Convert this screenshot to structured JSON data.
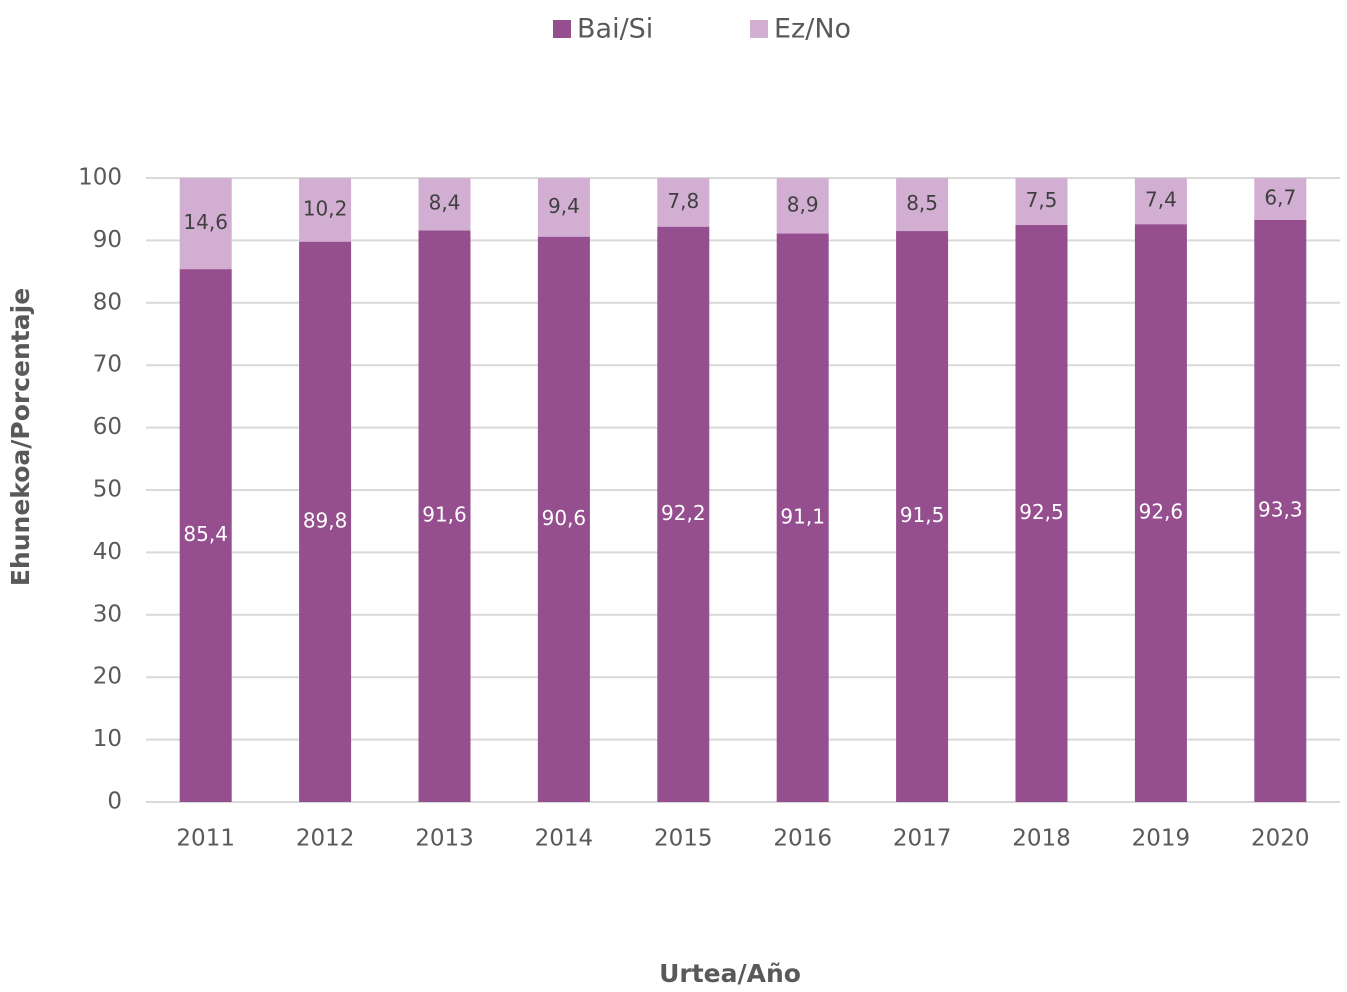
{
  "chart_data": {
    "type": "stacked_bar",
    "categories": [
      "2011",
      "2012",
      "2013",
      "2014",
      "2015",
      "2016",
      "2017",
      "2018",
      "2019",
      "2020"
    ],
    "series": [
      {
        "name": "Bai/Si",
        "color": "#954f8f",
        "values": [
          85.4,
          89.8,
          91.6,
          90.6,
          92.2,
          91.1,
          91.5,
          92.5,
          92.6,
          93.3
        ],
        "value_labels": [
          "85,4",
          "89,8",
          "91,6",
          "90,6",
          "92,2",
          "91,1",
          "91,5",
          "92,5",
          "92,6",
          "93,3"
        ]
      },
      {
        "name": "Ez/No",
        "color": "#d3aed3",
        "values": [
          14.6,
          10.2,
          8.4,
          9.4,
          7.8,
          8.9,
          8.5,
          7.5,
          7.4,
          6.7
        ],
        "value_labels": [
          "14,6",
          "10,2",
          "8,4",
          "9,4",
          "7,8",
          "8,9",
          "8,5",
          "7,5",
          "7,4",
          "6,7"
        ]
      }
    ],
    "ylim": [
      0,
      100
    ],
    "yticks": [
      0,
      10,
      20,
      30,
      40,
      50,
      60,
      70,
      80,
      90,
      100
    ],
    "xlabel": "Urtea/Año",
    "ylabel": "Ehunekoa/Porcentaje",
    "grid": true,
    "legend": "top"
  }
}
